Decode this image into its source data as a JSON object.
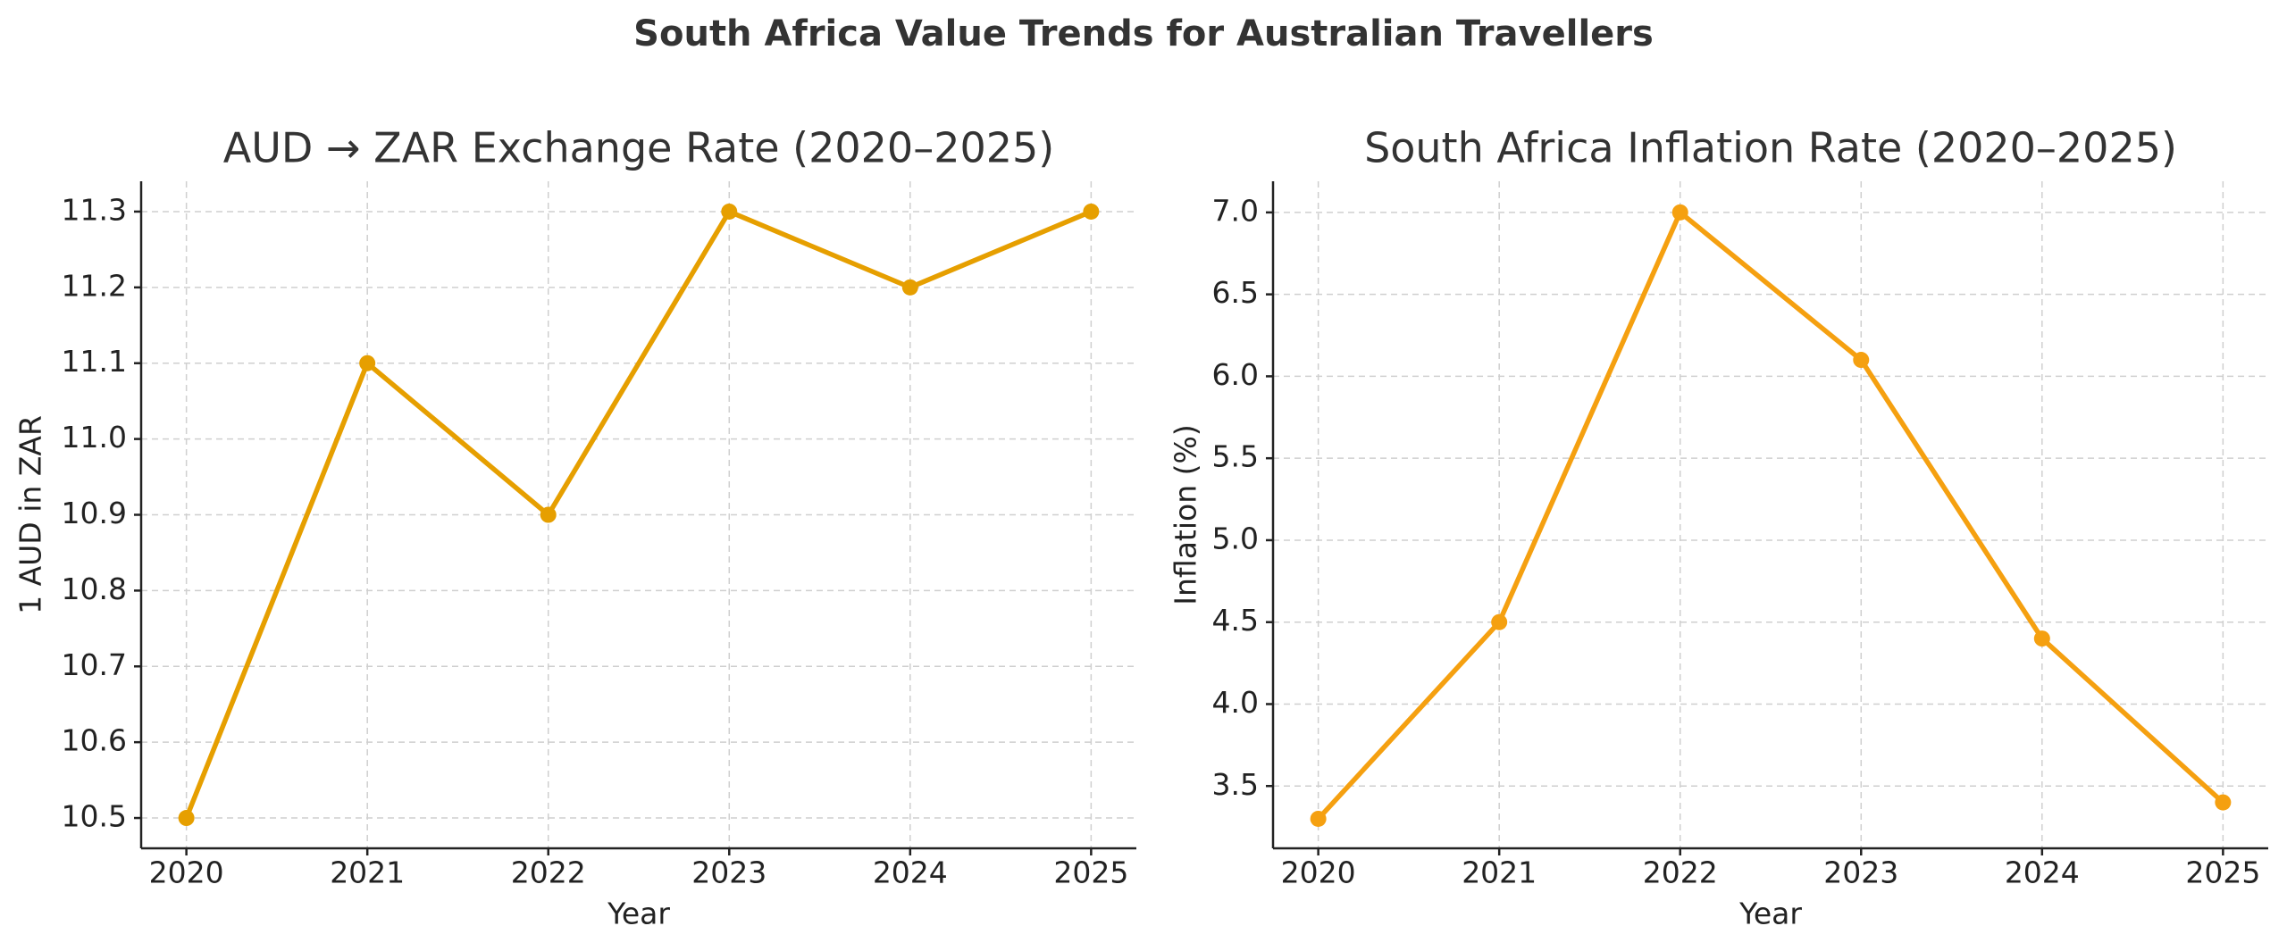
{
  "title": "South Africa Value Trends for Australian Travellers",
  "chart_data": [
    {
      "type": "line",
      "title": "AUD → ZAR Exchange Rate (2020–2025)",
      "x_label": "Year",
      "y_label": "1 AUD in ZAR",
      "x": [
        2020,
        2021,
        2022,
        2023,
        2024,
        2025
      ],
      "series": [
        {
          "color": "#e69f00",
          "values": [
            10.5,
            11.1,
            10.9,
            11.3,
            11.2,
            11.3
          ]
        }
      ],
      "xlim": [
        2019.75,
        2025.25
      ],
      "xticks": [
        2020,
        2021,
        2022,
        2023,
        2024,
        2025
      ],
      "ylim": [
        10.46,
        11.34
      ],
      "yticks": [
        10.5,
        10.6,
        10.7,
        10.8,
        10.9,
        {
          "value": 11,
          "label": "11.0"
        },
        11.1,
        11.2,
        11.3
      ],
      "grid": true
    },
    {
      "type": "line",
      "title": "South Africa Inflation Rate (2020–2025)",
      "x_label": "Year",
      "y_label": "Inflation (%)",
      "x": [
        2020,
        2021,
        2022,
        2023,
        2024,
        2025
      ],
      "series": [
        {
          "color": "#f5a010",
          "values": [
            3.3,
            4.5,
            7.0,
            6.1,
            4.4,
            3.4
          ]
        }
      ],
      "xlim": [
        2019.75,
        2025.25
      ],
      "xticks": [
        2020,
        2021,
        2022,
        2023,
        2024,
        2025
      ],
      "ylim": [
        3.12,
        7.19
      ],
      "yticks": [
        3.5,
        {
          "value": 4,
          "label": "4.0"
        },
        4.5,
        {
          "value": 5,
          "label": "5.0"
        },
        5.5,
        {
          "value": 6,
          "label": "6.0"
        },
        6.5,
        {
          "value": 7,
          "label": "7.0"
        }
      ],
      "grid": true
    }
  ]
}
